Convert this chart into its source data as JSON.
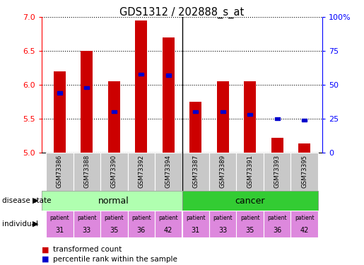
{
  "title": "GDS1312 / 202888_s_at",
  "samples": [
    "GSM73386",
    "GSM73388",
    "GSM73390",
    "GSM73392",
    "GSM73394",
    "GSM73387",
    "GSM73389",
    "GSM73391",
    "GSM73393",
    "GSM73395"
  ],
  "transformed_counts": [
    6.2,
    6.5,
    6.05,
    6.95,
    6.7,
    5.75,
    6.05,
    6.05,
    5.22,
    5.13
  ],
  "percentile_ranks": [
    44,
    48,
    30,
    58,
    57,
    30,
    30,
    28,
    25,
    24
  ],
  "ylim": [
    5.0,
    7.0
  ],
  "y_ticks_left": [
    5.0,
    5.5,
    6.0,
    6.5,
    7.0
  ],
  "y_ticks_right": [
    0,
    25,
    50,
    75,
    100
  ],
  "patient_ids": [
    31,
    33,
    35,
    36,
    42,
    31,
    33,
    35,
    36,
    42
  ],
  "bar_color": "#cc0000",
  "percentile_color": "#0000cc",
  "sample_bg_color": "#c8c8c8",
  "normal_bg": "#b0ffb0",
  "cancer_bg": "#33cc33",
  "individual_color": "#dd88dd"
}
